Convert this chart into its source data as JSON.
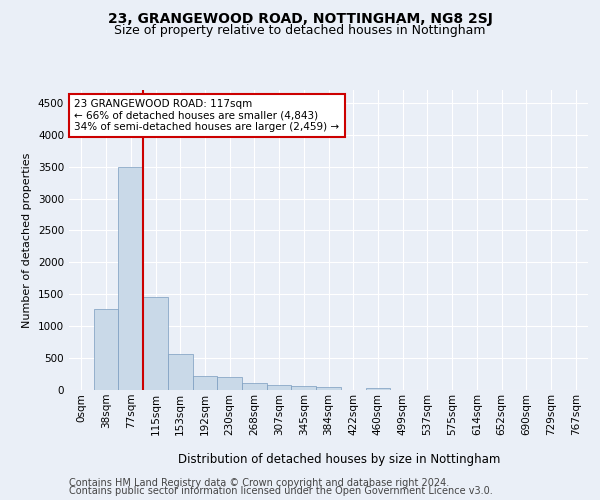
{
  "title1": "23, GRANGEWOOD ROAD, NOTTINGHAM, NG8 2SJ",
  "title2": "Size of property relative to detached houses in Nottingham",
  "xlabel": "Distribution of detached houses by size in Nottingham",
  "ylabel": "Number of detached properties",
  "footer1": "Contains HM Land Registry data © Crown copyright and database right 2024.",
  "footer2": "Contains public sector information licensed under the Open Government Licence v3.0.",
  "bin_labels": [
    "0sqm",
    "38sqm",
    "77sqm",
    "115sqm",
    "153sqm",
    "192sqm",
    "230sqm",
    "268sqm",
    "307sqm",
    "345sqm",
    "384sqm",
    "422sqm",
    "460sqm",
    "499sqm",
    "537sqm",
    "575sqm",
    "614sqm",
    "652sqm",
    "690sqm",
    "729sqm",
    "767sqm"
  ],
  "bar_values": [
    5,
    1270,
    3500,
    1450,
    560,
    220,
    210,
    110,
    80,
    55,
    50,
    0,
    30,
    0,
    0,
    0,
    0,
    0,
    0,
    0,
    0
  ],
  "bar_color": "#c9d9e8",
  "bar_edge_color": "#7a9cbf",
  "vline_x_idx": 3,
  "vline_color": "#cc0000",
  "annotation_text": "23 GRANGEWOOD ROAD: 117sqm\n← 66% of detached houses are smaller (4,843)\n34% of semi-detached houses are larger (2,459) →",
  "annotation_box_color": "#ffffff",
  "annotation_box_edge": "#cc0000",
  "ylim": [
    0,
    4700
  ],
  "yticks": [
    0,
    500,
    1000,
    1500,
    2000,
    2500,
    3000,
    3500,
    4000,
    4500
  ],
  "bg_color": "#eaeff7",
  "plot_bg_color": "#eaeff7",
  "grid_color": "#ffffff",
  "title1_fontsize": 10,
  "title2_fontsize": 9,
  "xlabel_fontsize": 8.5,
  "ylabel_fontsize": 8,
  "footer_fontsize": 7,
  "annotation_fontsize": 7.5,
  "tick_fontsize": 7.5
}
